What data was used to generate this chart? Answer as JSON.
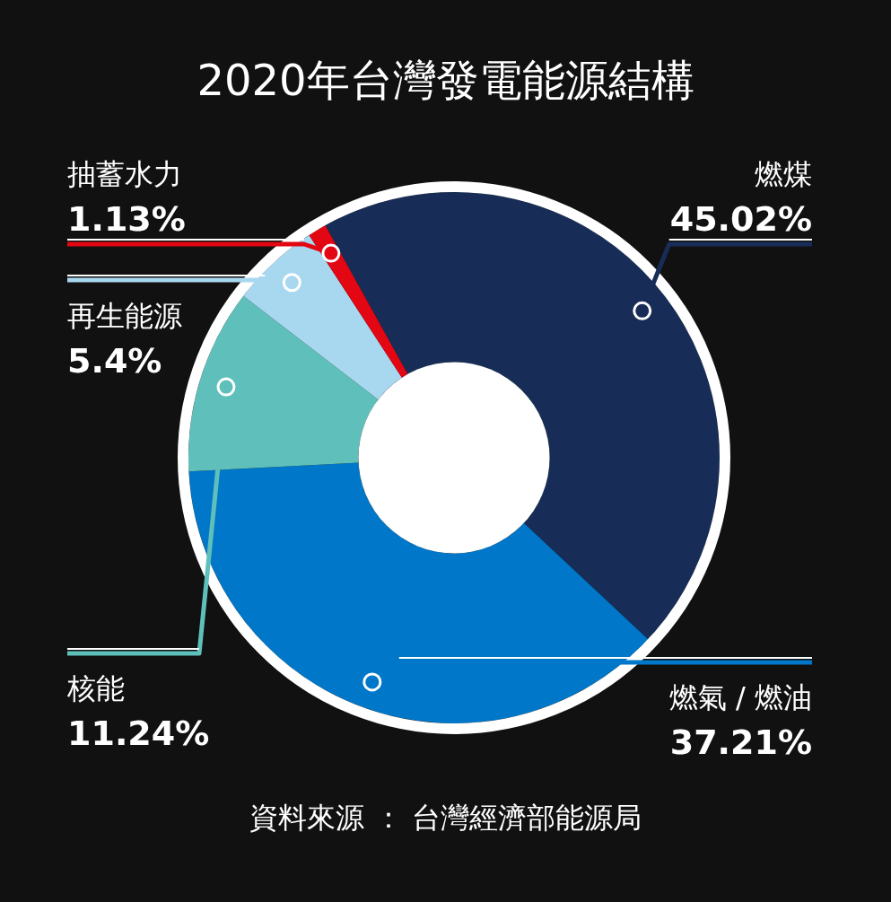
{
  "chart_data": {
    "type": "donut",
    "title": "2020年台灣發電能源結構",
    "categories": [
      "燃煤",
      "燃氣 / 燃油",
      "核能",
      "再生能源",
      "抽蓄水力"
    ],
    "values": [
      45.02,
      37.21,
      11.24,
      5.4,
      1.13
    ],
    "colors": [
      "#172d57",
      "#0077c8",
      "#5fc0bb",
      "#a8d8f0",
      "#e30613"
    ],
    "value_labels": [
      "45.02%",
      "37.21%",
      "11.24%",
      "5.4%",
      "1.13%"
    ],
    "annotations": [
      "資料來源 ： 台灣經濟部能源局"
    ]
  }
}
